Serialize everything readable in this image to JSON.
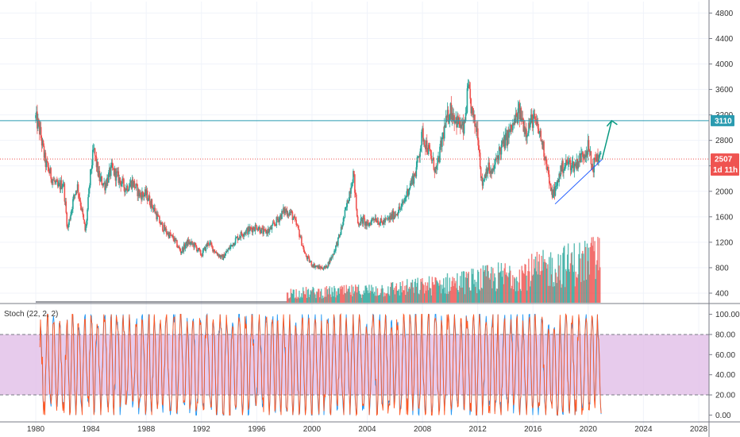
{
  "chart_data": {
    "type": "candlestick",
    "x_ticks": [
      "1980",
      "1984",
      "1988",
      "1992",
      "1996",
      "2000",
      "2004",
      "2008",
      "2012",
      "2016",
      "2020",
      "2024",
      "2028"
    ],
    "xlim": [
      1979.8,
      2028.6
    ],
    "price_axis": {
      "ticks": [
        "4800",
        "4400",
        "4000",
        "3600",
        "3200",
        "2800",
        "2400",
        "2000",
        "1600",
        "1200",
        "800",
        "400"
      ],
      "ylim": [
        250,
        4980
      ]
    },
    "price_path": [
      [
        1980.0,
        3150
      ],
      [
        1980.3,
        2950
      ],
      [
        1980.7,
        2450
      ],
      [
        1981.2,
        2200
      ],
      [
        1981.6,
        2050
      ],
      [
        1982.0,
        2150
      ],
      [
        1982.3,
        1400
      ],
      [
        1982.7,
        1850
      ],
      [
        1983.0,
        2100
      ],
      [
        1983.3,
        1750
      ],
      [
        1983.6,
        1350
      ],
      [
        1984.0,
        2350
      ],
      [
        1984.2,
        2650
      ],
      [
        1984.6,
        2200
      ],
      [
        1985.0,
        2100
      ],
      [
        1985.5,
        2350
      ],
      [
        1986.0,
        2200
      ],
      [
        1986.5,
        2050
      ],
      [
        1987.0,
        2150
      ],
      [
        1987.5,
        1950
      ],
      [
        1988.0,
        1950
      ],
      [
        1988.5,
        1750
      ],
      [
        1989.0,
        1500
      ],
      [
        1989.5,
        1350
      ],
      [
        1990.0,
        1250
      ],
      [
        1990.5,
        1050
      ],
      [
        1991.0,
        1200
      ],
      [
        1991.5,
        1150
      ],
      [
        1992.0,
        1000
      ],
      [
        1992.5,
        1200
      ],
      [
        1993.0,
        1050
      ],
      [
        1993.5,
        950
      ],
      [
        1994.0,
        1100
      ],
      [
        1994.5,
        1250
      ],
      [
        1995.0,
        1350
      ],
      [
        1995.5,
        1400
      ],
      [
        1996.0,
        1450
      ],
      [
        1996.5,
        1350
      ],
      [
        1997.0,
        1400
      ],
      [
        1997.5,
        1550
      ],
      [
        1998.0,
        1700
      ],
      [
        1998.5,
        1650
      ],
      [
        1999.0,
        1400
      ],
      [
        1999.5,
        1000
      ],
      [
        2000.0,
        850
      ],
      [
        2000.5,
        800
      ],
      [
        2001.0,
        800
      ],
      [
        2001.5,
        1000
      ],
      [
        2002.0,
        1300
      ],
      [
        2002.5,
        1750
      ],
      [
        2003.0,
        2300
      ],
      [
        2003.3,
        1500
      ],
      [
        2003.7,
        1550
      ],
      [
        2004.0,
        1450
      ],
      [
        2004.5,
        1600
      ],
      [
        2005.0,
        1500
      ],
      [
        2005.5,
        1550
      ],
      [
        2006.0,
        1650
      ],
      [
        2006.5,
        1750
      ],
      [
        2007.0,
        2050
      ],
      [
        2007.5,
        2300
      ],
      [
        2008.0,
        2900
      ],
      [
        2008.5,
        2600
      ],
      [
        2009.0,
        2300
      ],
      [
        2009.5,
        2900
      ],
      [
        2010.0,
        3300
      ],
      [
        2010.5,
        3100
      ],
      [
        2011.0,
        2950
      ],
      [
        2011.3,
        3600
      ],
      [
        2011.7,
        3100
      ],
      [
        2012.0,
        2950
      ],
      [
        2012.3,
        2100
      ],
      [
        2012.7,
        2400
      ],
      [
        2013.0,
        2250
      ],
      [
        2013.5,
        2600
      ],
      [
        2014.0,
        2800
      ],
      [
        2014.5,
        3000
      ],
      [
        2015.0,
        3250
      ],
      [
        2015.5,
        2950
      ],
      [
        2016.0,
        3150
      ],
      [
        2016.5,
        2900
      ],
      [
        2017.0,
        2450
      ],
      [
        2017.3,
        1950
      ],
      [
        2017.7,
        2050
      ],
      [
        2018.0,
        2350
      ],
      [
        2018.5,
        2450
      ],
      [
        2019.0,
        2400
      ],
      [
        2019.5,
        2550
      ],
      [
        2020.0,
        2700
      ],
      [
        2020.3,
        2350
      ],
      [
        2020.6,
        2550
      ],
      [
        2020.9,
        2507
      ]
    ],
    "price_line": {
      "value": 3110,
      "label": "3110",
      "color": "#2a9bb0"
    },
    "current_price": {
      "value": 2507,
      "label": "2507",
      "countdown": "1d 11h",
      "color": "#ef5350"
    },
    "trendline": {
      "from": [
        2017.6,
        1800
      ],
      "to": [
        2021.0,
        2500
      ],
      "color": "#2962ff"
    },
    "projection_arrow": {
      "from": [
        2021.0,
        2500
      ],
      "to": [
        2021.7,
        3110
      ],
      "color": "#089981"
    },
    "volume": {
      "start": 1998.2,
      "end": 2020.9,
      "base_color": "#26a69a",
      "alt_color": "#ef5350"
    },
    "stoch": {
      "title": "Stoch (22, 2, 2)",
      "ticks": [
        "100.00",
        "80.00",
        "60.00",
        "40.00",
        "20.00",
        "0.00"
      ],
      "ylim": [
        -6,
        106
      ],
      "upper_band": 80,
      "lower_band": 20,
      "band_color": "#e1bee7",
      "k_color": "#2196f3",
      "d_color": "#ff5722"
    },
    "colors": {
      "up": "#26a69a",
      "down": "#ef5350",
      "grid": "#f0f3fa",
      "axis": "#131722"
    }
  }
}
